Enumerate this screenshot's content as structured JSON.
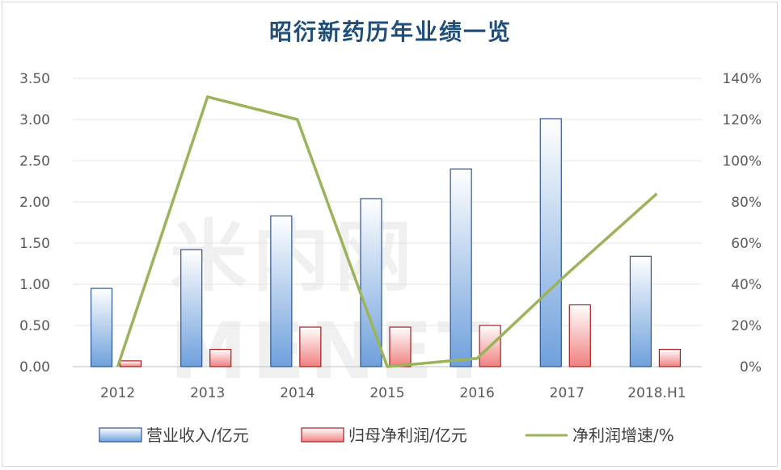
{
  "chart_data": {
    "type": "bar",
    "title": "昭衍新药历年业绩一览",
    "categories": [
      "2012",
      "2013",
      "2014",
      "2015",
      "2016",
      "2017",
      "2018.H1"
    ],
    "series": [
      {
        "name": "营业收入/亿元",
        "type": "bar",
        "axis": "left",
        "values": [
          0.95,
          1.42,
          1.83,
          2.04,
          2.4,
          3.01,
          1.34
        ]
      },
      {
        "name": "归母净利润/亿元",
        "type": "bar",
        "axis": "left",
        "values": [
          0.07,
          0.21,
          0.48,
          0.48,
          0.5,
          0.75,
          0.21
        ]
      },
      {
        "name": "净利润增速/%",
        "type": "line",
        "axis": "right",
        "values": [
          0,
          131,
          120,
          0,
          4,
          45,
          84
        ]
      }
    ],
    "y_left": {
      "ylim": [
        0,
        3.5
      ],
      "ticks": [
        "0.00",
        "0.50",
        "1.00",
        "1.50",
        "2.00",
        "2.50",
        "3.00",
        "3.50"
      ]
    },
    "y_right": {
      "ylim": [
        0,
        140
      ],
      "ticks": [
        "0%",
        "20%",
        "40%",
        "60%",
        "80%",
        "100%",
        "120%",
        "140%"
      ]
    },
    "grid": true,
    "legend": "bottom",
    "colors": {
      "revenue": "#9dc3e6",
      "revenue_edge": "#2e5597",
      "profit": "#f4a7a7",
      "profit_edge": "#a32020",
      "growth": "#9bb35a"
    }
  },
  "watermark": "米内网MENET"
}
